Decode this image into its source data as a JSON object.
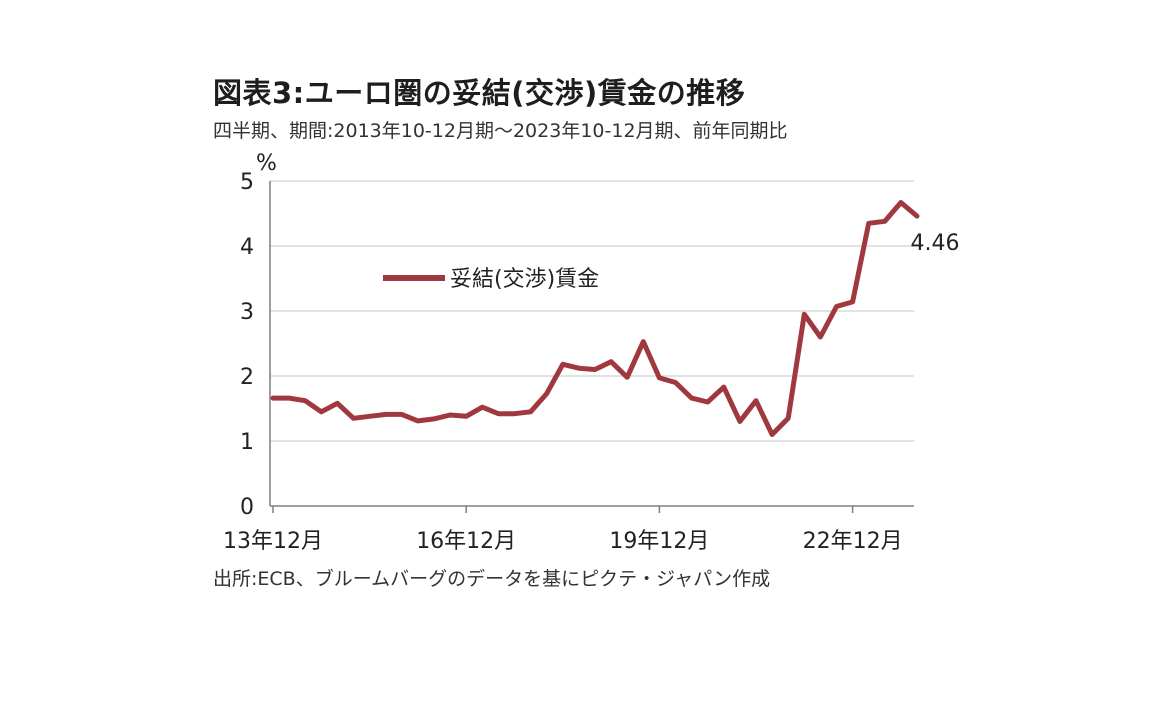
{
  "title": "図表3:ユーロ圏の妥結(交渉)賃金の推移",
  "subtitle": "四半期、期間:2013年10-12月期～2023年10-12月期、前年同期比",
  "source": "出所:ECB、ブルームバーグのデータを基にピクテ・ジャパン作成",
  "colors": {
    "series": "#a0393f",
    "grid": "#d9d9d9",
    "axis": "#7f7f7f"
  },
  "chart_data": {
    "type": "line",
    "ylabel": "%",
    "ylim": [
      0,
      5
    ],
    "yticks": [
      0,
      1,
      2,
      3,
      4,
      5
    ],
    "xtick_labels": [
      {
        "label": "13年12月",
        "index": 0
      },
      {
        "label": "16年12月",
        "index": 12
      },
      {
        "label": "19年12月",
        "index": 24
      },
      {
        "label": "22年12月",
        "index": 36
      }
    ],
    "legend": {
      "position": "upper-left-inside"
    },
    "series": [
      {
        "name": "妥結(交渉)賃金",
        "values": [
          1.66,
          1.66,
          1.62,
          1.45,
          1.58,
          1.35,
          1.38,
          1.41,
          1.41,
          1.31,
          1.34,
          1.4,
          1.38,
          1.52,
          1.42,
          1.42,
          1.45,
          1.73,
          2.18,
          2.12,
          2.1,
          2.22,
          1.98,
          2.53,
          1.97,
          1.9,
          1.66,
          1.6,
          1.83,
          1.3,
          1.62,
          1.1,
          1.35,
          2.95,
          2.6,
          3.07,
          3.14,
          4.35,
          4.38,
          4.67,
          4.46
        ]
      }
    ],
    "annotations": [
      {
        "text": "4.46",
        "index": 40
      }
    ]
  }
}
